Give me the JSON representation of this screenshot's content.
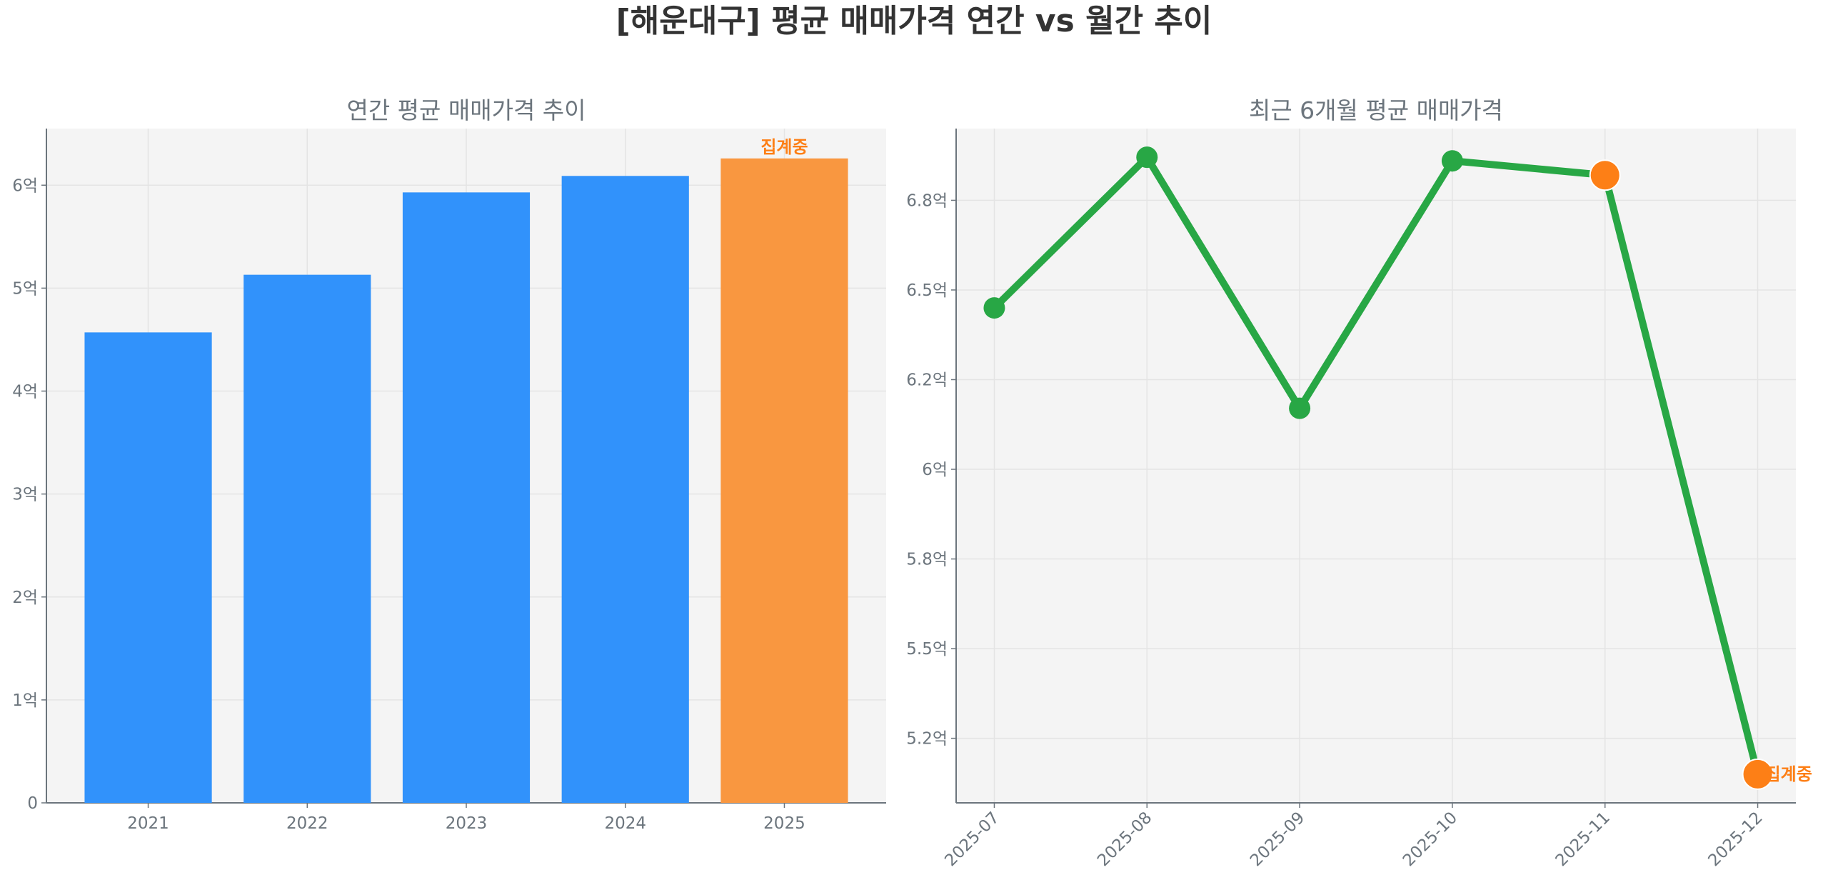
{
  "title": "[해운대구] 평균 매매가격 연간 vs 월간 추이",
  "colors": {
    "bar": "#3192FB",
    "bar_partial": "#F99740",
    "line": "#28A745",
    "partial_marker": "#FD7F16",
    "partial_label": "#FD7F16"
  },
  "chart_data": [
    {
      "type": "bar",
      "title": "연간 평균 매매가격 추이",
      "categories": [
        "2021",
        "2022",
        "2023",
        "2024",
        "2025"
      ],
      "values": [
        4.57,
        5.13,
        5.93,
        6.09,
        6.26
      ],
      "unit": "억",
      "partial": [
        false,
        false,
        false,
        false,
        true
      ],
      "partial_label": "집계중",
      "ylim": [
        0,
        6.55
      ],
      "yticks": [
        0,
        1,
        2,
        3,
        4,
        5,
        6
      ],
      "ytick_labels": [
        "0",
        "1억",
        "2억",
        "3억",
        "4억",
        "5억",
        "6억"
      ],
      "xlabel": "",
      "ylabel": "",
      "grid": true
    },
    {
      "type": "line",
      "title": "최근 6개월 평균 매매가격",
      "categories": [
        "2025-07",
        "2025-08",
        "2025-09",
        "2025-10",
        "2025-11",
        "2025-12"
      ],
      "values": [
        6.45,
        6.87,
        6.17,
        6.86,
        6.82,
        5.15
      ],
      "unit": "억",
      "partial": [
        false,
        false,
        false,
        false,
        true,
        true
      ],
      "partial_label": "집계중",
      "ylim": [
        5.07,
        6.95
      ],
      "yticks": [
        5.25,
        5.5,
        5.75,
        6.0,
        6.25,
        6.5,
        6.75
      ],
      "ytick_labels": [
        "5.2억",
        "5.5억",
        "5.8억",
        "6억",
        "6.2억",
        "6.5억",
        "6.8억"
      ],
      "xlabel": "",
      "ylabel": "",
      "grid": true
    }
  ]
}
